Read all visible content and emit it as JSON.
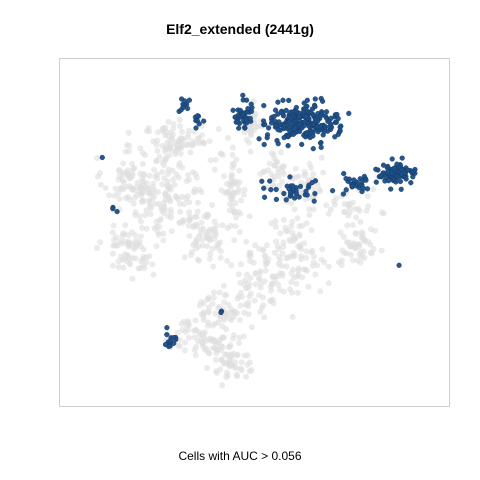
{
  "chart_data": {
    "type": "scatter",
    "title": "Elf2_extended (2441g)",
    "xlabel": "Cells with AUC > 0.056",
    "ylabel": "",
    "grid": false,
    "legend": "none",
    "colors": {
      "background_cells": "#dedede",
      "high_auc_cells": "#1e4e86",
      "frame": "#cfcfcf"
    },
    "xlim": [
      0,
      100
    ],
    "ylim": [
      0,
      100
    ],
    "series": [
      {
        "highlight": false,
        "clusters": [
          {
            "center": [
              16,
              66
            ],
            "spread": [
              6,
              6
            ],
            "count": 70
          },
          {
            "center": [
              16,
              46
            ],
            "spread": [
              6,
              8
            ],
            "count": 70
          },
          {
            "center": [
              27,
              60
            ],
            "spread": [
              8,
              11
            ],
            "count": 120
          },
          {
            "center": [
              29,
              78
            ],
            "spread": [
              9,
              6
            ],
            "count": 90
          },
          {
            "center": [
              37,
              50
            ],
            "spread": [
              5,
              8
            ],
            "count": 60
          },
          {
            "center": [
              44,
              63
            ],
            "spread": [
              3,
              10
            ],
            "count": 55
          },
          {
            "center": [
              51,
              37
            ],
            "spread": [
              6,
              10
            ],
            "count": 70
          },
          {
            "center": [
              61,
              44
            ],
            "spread": [
              7,
              10
            ],
            "count": 90
          },
          {
            "center": [
              63,
              64
            ],
            "spread": [
              6,
              6
            ],
            "count": 50
          },
          {
            "center": [
              42,
              27
            ],
            "spread": [
              6,
              5
            ],
            "count": 55
          },
          {
            "center": [
              37,
              18
            ],
            "spread": [
              9,
              5
            ],
            "count": 80
          },
          {
            "center": [
              44,
              10
            ],
            "spread": [
              5,
              4
            ],
            "count": 45
          },
          {
            "center": [
              49,
              82
            ],
            "spread": [
              3,
              5
            ],
            "count": 30
          },
          {
            "center": [
              55,
              70
            ],
            "spread": [
              3,
              5
            ],
            "count": 25
          },
          {
            "center": [
              78,
              45
            ],
            "spread": [
              4,
              5
            ],
            "count": 45
          },
          {
            "center": [
              76,
              58
            ],
            "spread": [
              5,
              5
            ],
            "count": 35
          }
        ]
      },
      {
        "highlight": true,
        "clusters": [
          {
            "center": [
              63,
              84
            ],
            "spread": [
              8,
              5
            ],
            "count": 220
          },
          {
            "center": [
              47,
              86
            ],
            "spread": [
              2.5,
              4
            ],
            "count": 40
          },
          {
            "center": [
              60,
              63
            ],
            "spread": [
              7,
              3
            ],
            "count": 35
          },
          {
            "center": [
              78,
              65
            ],
            "spread": [
              4,
              2.5
            ],
            "count": 25
          },
          {
            "center": [
              88,
              68
            ],
            "spread": [
              4.5,
              2.5
            ],
            "count": 80
          },
          {
            "center": [
              31,
              89
            ],
            "spread": [
              1.3,
              2
            ],
            "count": 10
          },
          {
            "center": [
              34,
              84
            ],
            "spread": [
              2,
              2
            ],
            "count": 8
          },
          {
            "center": [
              27,
              18
            ],
            "spread": [
              2,
              3
            ],
            "count": 14
          },
          {
            "center": [
              41,
              26
            ],
            "spread": [
              0.5,
              0.5
            ],
            "count": 2
          },
          {
            "center": [
              9,
              73
            ],
            "spread": [
              0.5,
              0.5
            ],
            "count": 1
          },
          {
            "center": [
              12,
              57
            ],
            "spread": [
              0.6,
              1
            ],
            "count": 3
          },
          {
            "center": [
              89,
              40
            ],
            "spread": [
              0.4,
              0.4
            ],
            "count": 1
          }
        ]
      }
    ]
  }
}
